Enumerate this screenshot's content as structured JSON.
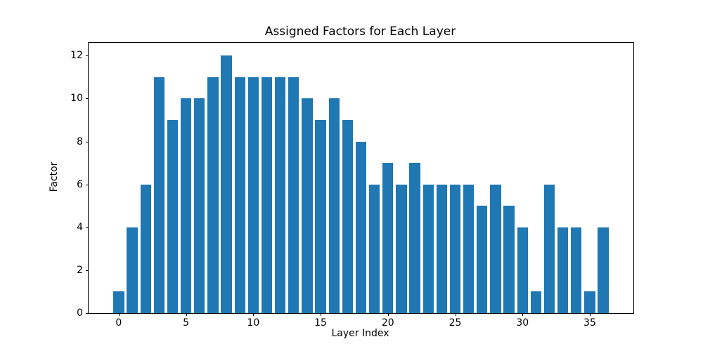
{
  "figure": {
    "background": "#ffffff"
  },
  "chart_data": {
    "type": "bar",
    "title": "Assigned Factors for Each Layer",
    "xlabel": "Layer Index",
    "ylabel": "Factor",
    "categories": [
      0,
      1,
      2,
      3,
      4,
      5,
      6,
      7,
      8,
      9,
      10,
      11,
      12,
      13,
      14,
      15,
      16,
      17,
      18,
      19,
      20,
      21,
      22,
      23,
      24,
      25,
      26,
      27,
      28,
      29,
      30,
      31,
      32,
      33,
      34,
      35,
      36
    ],
    "values": [
      1,
      4,
      6,
      11,
      9,
      10,
      10,
      11,
      12,
      11,
      11,
      11,
      11,
      11,
      10,
      9,
      10,
      9,
      8,
      6,
      7,
      6,
      7,
      6,
      6,
      6,
      6,
      5,
      6,
      5,
      4,
      1,
      6,
      4,
      4,
      1,
      4
    ],
    "bar_color": "#1f77b4",
    "bar_width": 0.8,
    "xticks": [
      0,
      5,
      10,
      15,
      20,
      25,
      30,
      35
    ],
    "yticks": [
      0,
      2,
      4,
      6,
      8,
      10,
      12
    ],
    "xlim": [
      -2.24,
      38.24
    ],
    "ylim": [
      0,
      12.6
    ],
    "grid": false,
    "legend": "none"
  }
}
